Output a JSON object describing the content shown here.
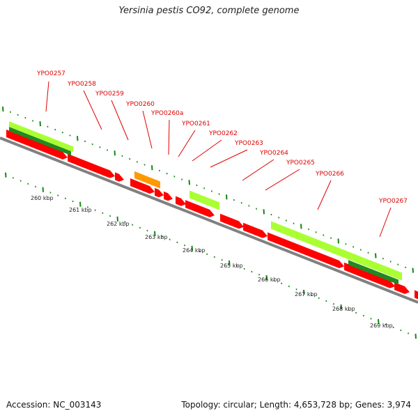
{
  "title": "Yersinia pestis CO92, complete genome",
  "footer": {
    "accession": "Accession: NC_003143",
    "summary": "Topology: circular; Length: 4,653,728 bp; Genes: 3,974"
  },
  "colors": {
    "cds": "#ff0000",
    "gene_forward": "#aaff33",
    "gene_reverse": "#228822",
    "other": "#ff9900",
    "backbone": "#808080",
    "tick": "#118811",
    "label": "#e00000"
  },
  "gene_labels": [
    "YPO0257",
    "YPO0258",
    "YPO0259",
    "YPO0260",
    "YPO0260a",
    "YPO0261",
    "YPO0262",
    "YPO0263",
    "YPO0264",
    "YPO0265",
    "YPO0266",
    "YPO0267"
  ],
  "kbp_labels": [
    "260 kbp",
    "261 kbp",
    "262 kbp",
    "263 kbp",
    "264 kbp",
    "265 kbp",
    "266 kbp",
    "267 kbp",
    "268 kbp",
    "269 kbp"
  ]
}
